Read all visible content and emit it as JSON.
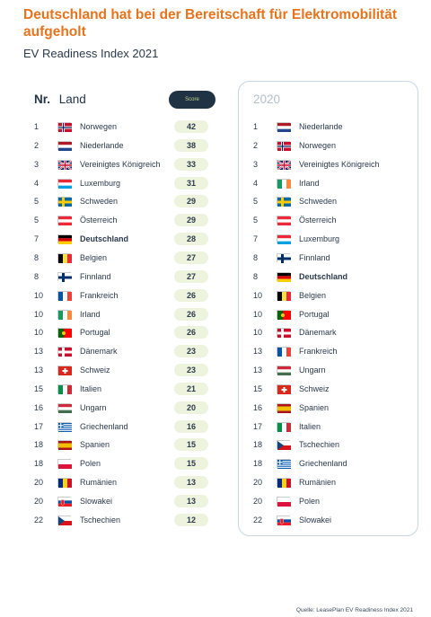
{
  "header": {
    "title": "Deutschland hat bei der Bereitschaft für Elektromobilität aufgeholt",
    "subtitle": "EV Readiness Index 2021"
  },
  "left_table": {
    "col_nr": "Nr.",
    "col_land": "Land",
    "score_label": "Score",
    "rows": [
      {
        "rank": "1",
        "country": "Norwegen",
        "flag": "NO",
        "score": "42"
      },
      {
        "rank": "2",
        "country": "Niederlande",
        "flag": "NL",
        "score": "38"
      },
      {
        "rank": "3",
        "country": "Vereinigtes Königreich",
        "flag": "GB",
        "score": "33"
      },
      {
        "rank": "4",
        "country": "Luxemburg",
        "flag": "LU",
        "score": "31"
      },
      {
        "rank": "5",
        "country": "Schweden",
        "flag": "SE",
        "score": "29"
      },
      {
        "rank": "5",
        "country": "Österreich",
        "flag": "AT",
        "score": "29"
      },
      {
        "rank": "7",
        "country": "Deutschland",
        "flag": "DE",
        "score": "28",
        "highlight": true
      },
      {
        "rank": "8",
        "country": "Belgien",
        "flag": "BE",
        "score": "27"
      },
      {
        "rank": "8",
        "country": "Finnland",
        "flag": "FI",
        "score": "27"
      },
      {
        "rank": "10",
        "country": "Frankreich",
        "flag": "FR",
        "score": "26"
      },
      {
        "rank": "10",
        "country": "Irland",
        "flag": "IE",
        "score": "26"
      },
      {
        "rank": "10",
        "country": "Portugal",
        "flag": "PT",
        "score": "26"
      },
      {
        "rank": "13",
        "country": "Dänemark",
        "flag": "DK",
        "score": "23"
      },
      {
        "rank": "13",
        "country": "Schweiz",
        "flag": "CH",
        "score": "23"
      },
      {
        "rank": "15",
        "country": "Italien",
        "flag": "IT",
        "score": "21"
      },
      {
        "rank": "16",
        "country": "Ungarn",
        "flag": "HU",
        "score": "20"
      },
      {
        "rank": "17",
        "country": "Griechenland",
        "flag": "GR",
        "score": "16"
      },
      {
        "rank": "18",
        "country": "Spanien",
        "flag": "ES",
        "score": "15"
      },
      {
        "rank": "18",
        "country": "Polen",
        "flag": "PL",
        "score": "15"
      },
      {
        "rank": "20",
        "country": "Rumänien",
        "flag": "RO",
        "score": "13"
      },
      {
        "rank": "20",
        "country": "Slowakei",
        "flag": "SK",
        "score": "13"
      },
      {
        "rank": "22",
        "country": "Tschechien",
        "flag": "CZ",
        "score": "12"
      }
    ]
  },
  "right_table": {
    "year": "2020",
    "rows": [
      {
        "rank": "1",
        "country": "Niederlande",
        "flag": "NL"
      },
      {
        "rank": "2",
        "country": "Norwegen",
        "flag": "NO"
      },
      {
        "rank": "3",
        "country": "Vereinigtes Königreich",
        "flag": "GB"
      },
      {
        "rank": "4",
        "country": "Irland",
        "flag": "IE"
      },
      {
        "rank": "5",
        "country": "Schweden",
        "flag": "SE"
      },
      {
        "rank": "5",
        "country": "Österreich",
        "flag": "AT"
      },
      {
        "rank": "7",
        "country": "Luxemburg",
        "flag": "LU"
      },
      {
        "rank": "8",
        "country": "Finnland",
        "flag": "FI"
      },
      {
        "rank": "8",
        "country": "Deutschland",
        "flag": "DE",
        "highlight": true
      },
      {
        "rank": "10",
        "country": "Belgien",
        "flag": "BE"
      },
      {
        "rank": "10",
        "country": "Portugal",
        "flag": "PT"
      },
      {
        "rank": "10",
        "country": "Dänemark",
        "flag": "DK"
      },
      {
        "rank": "13",
        "country": "Frankreich",
        "flag": "FR"
      },
      {
        "rank": "13",
        "country": "Ungarn",
        "flag": "HU"
      },
      {
        "rank": "15",
        "country": "Schweiz",
        "flag": "CH"
      },
      {
        "rank": "16",
        "country": "Spanien",
        "flag": "ES"
      },
      {
        "rank": "17",
        "country": "Italien",
        "flag": "IT"
      },
      {
        "rank": "18",
        "country": "Tschechien",
        "flag": "CZ"
      },
      {
        "rank": "18",
        "country": "Griechenland",
        "flag": "GR"
      },
      {
        "rank": "20",
        "country": "Rumänien",
        "flag": "RO"
      },
      {
        "rank": "20",
        "country": "Polen",
        "flag": "PL"
      },
      {
        "rank": "22",
        "country": "Slowakei",
        "flag": "SK"
      }
    ]
  },
  "footer": {
    "source": "Quelle: LeasePlan EV Readiness Index 2021"
  },
  "colors": {
    "title": "#e8731c",
    "score_pill_bg": "#eef3de",
    "score_header_bg": "#1f3344",
    "panel_border": "#c7d6e2"
  }
}
